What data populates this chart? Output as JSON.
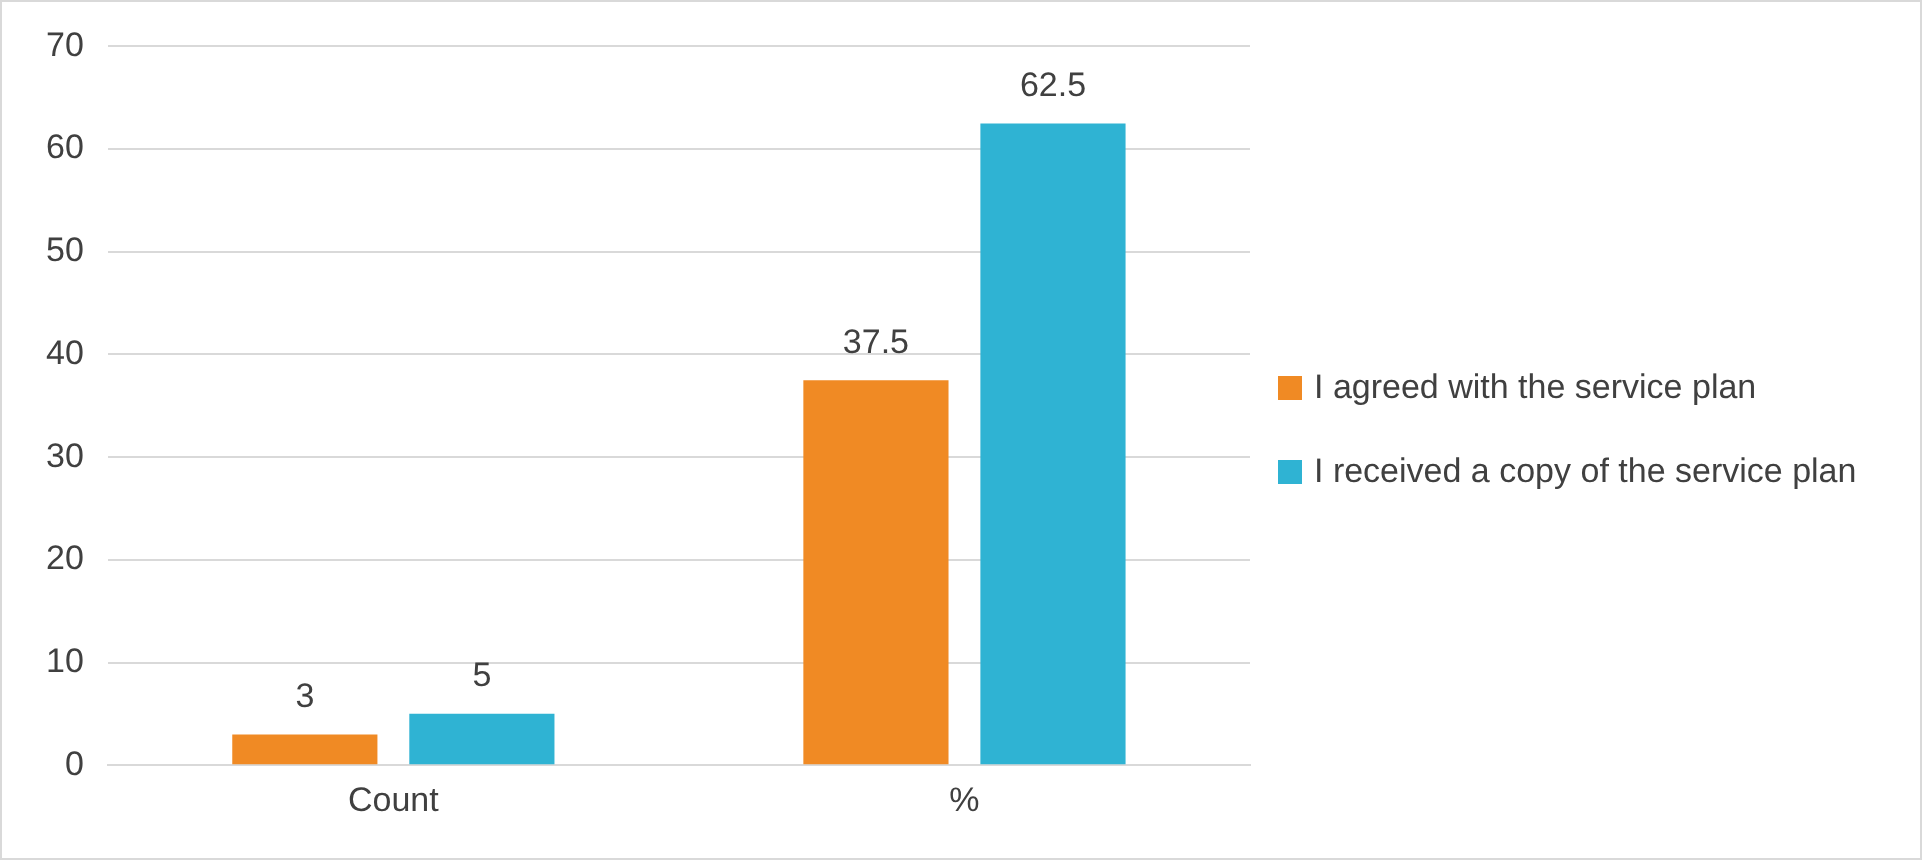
{
  "chart_data": {
    "type": "bar",
    "categories": [
      "Count",
      "%"
    ],
    "series": [
      {
        "name": "I agreed with the service plan",
        "color": "#f08a24",
        "values": [
          3,
          37.5
        ]
      },
      {
        "name": "I received a copy of the service plan",
        "color": "#2fb3d3",
        "values": [
          5,
          62.5
        ]
      }
    ],
    "ylim": [
      0,
      70
    ],
    "yticks": [
      0,
      10,
      20,
      30,
      40,
      50,
      60,
      70
    ],
    "grid": "y",
    "legend": "right",
    "data_labels": true
  }
}
